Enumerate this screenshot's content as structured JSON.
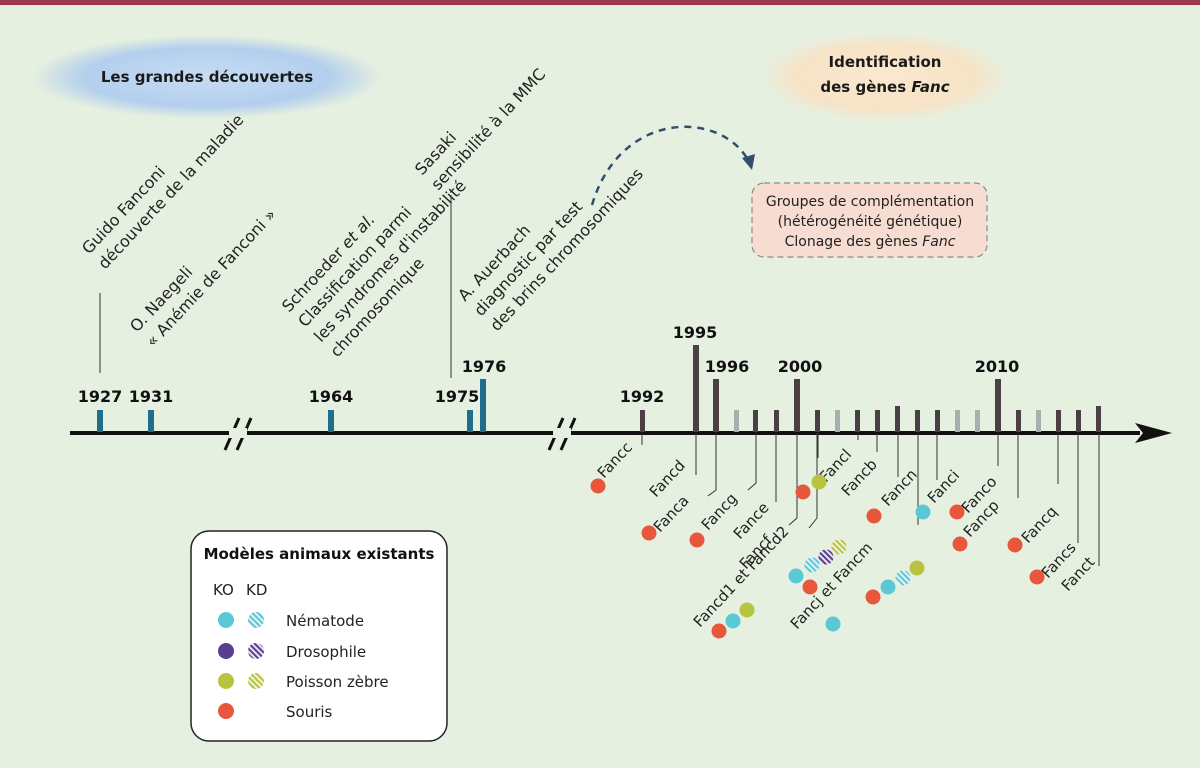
{
  "headers": {
    "left": "Les grandes découvertes",
    "right_line1": "Identification",
    "right_line2_prefix": "des gènes ",
    "right_line2_italic": "Fanc"
  },
  "discoveries": [
    {
      "line1": "Guido Fanconi",
      "line2": "découverte de la maladie"
    },
    {
      "line1": "O. Naegeli",
      "line2": "« Anémie de Fanconi »"
    },
    {
      "line1_prefix": "Schroeder ",
      "line1_italic": "et al.",
      "line2": "Classification parmi",
      "line3": "les syndromes d'instabilité",
      "line4": "chromosomique"
    },
    {
      "line1": "Sasaki",
      "line2": "sensibilité à la MMC"
    },
    {
      "line1": "A. Auerbach",
      "line2": "diagnostic par test",
      "line3": "des brins chromosomiques"
    }
  ],
  "groups_box": {
    "line1": "Groupes de complémentation",
    "line2": "(hétérogénéité génétique)",
    "line3_prefix": "Clonage des gènes ",
    "line3_italic": "Fanc"
  },
  "years": [
    "1927",
    "1931",
    "1964",
    "1975",
    "1976",
    "1992",
    "1995",
    "1996",
    "2000",
    "2010"
  ],
  "genes": [
    "Fancc",
    "Fancd",
    "Fanca",
    "Fancg",
    "Fance",
    "Fancf",
    "Fancd1 et Fancd2",
    "Fancl",
    "Fancb",
    "Fancn",
    "Fanci",
    "Fancj et Fancm",
    "Fanco",
    "Fancp",
    "Fancq",
    "Fancs",
    "Fanct"
  ],
  "legend": {
    "title": "Modèles animaux existants",
    "ko": "KO",
    "kd": "KD",
    "items": [
      {
        "label": "Nématode",
        "color": "#5bc8d6"
      },
      {
        "label": "Drosophile",
        "color": "#5b3f8f"
      },
      {
        "label": "Poisson zèbre",
        "color": "#b8c441"
      },
      {
        "label": "Souris",
        "color": "#e8573b"
      }
    ]
  },
  "colors": {
    "teal": "#1f6f8b",
    "dark": "#4a3f45",
    "grey": "#a9aeb0",
    "orange": "#e8573b",
    "cyan": "#5bc8d6",
    "purple": "#5b3f8f",
    "olive": "#b8c441"
  }
}
